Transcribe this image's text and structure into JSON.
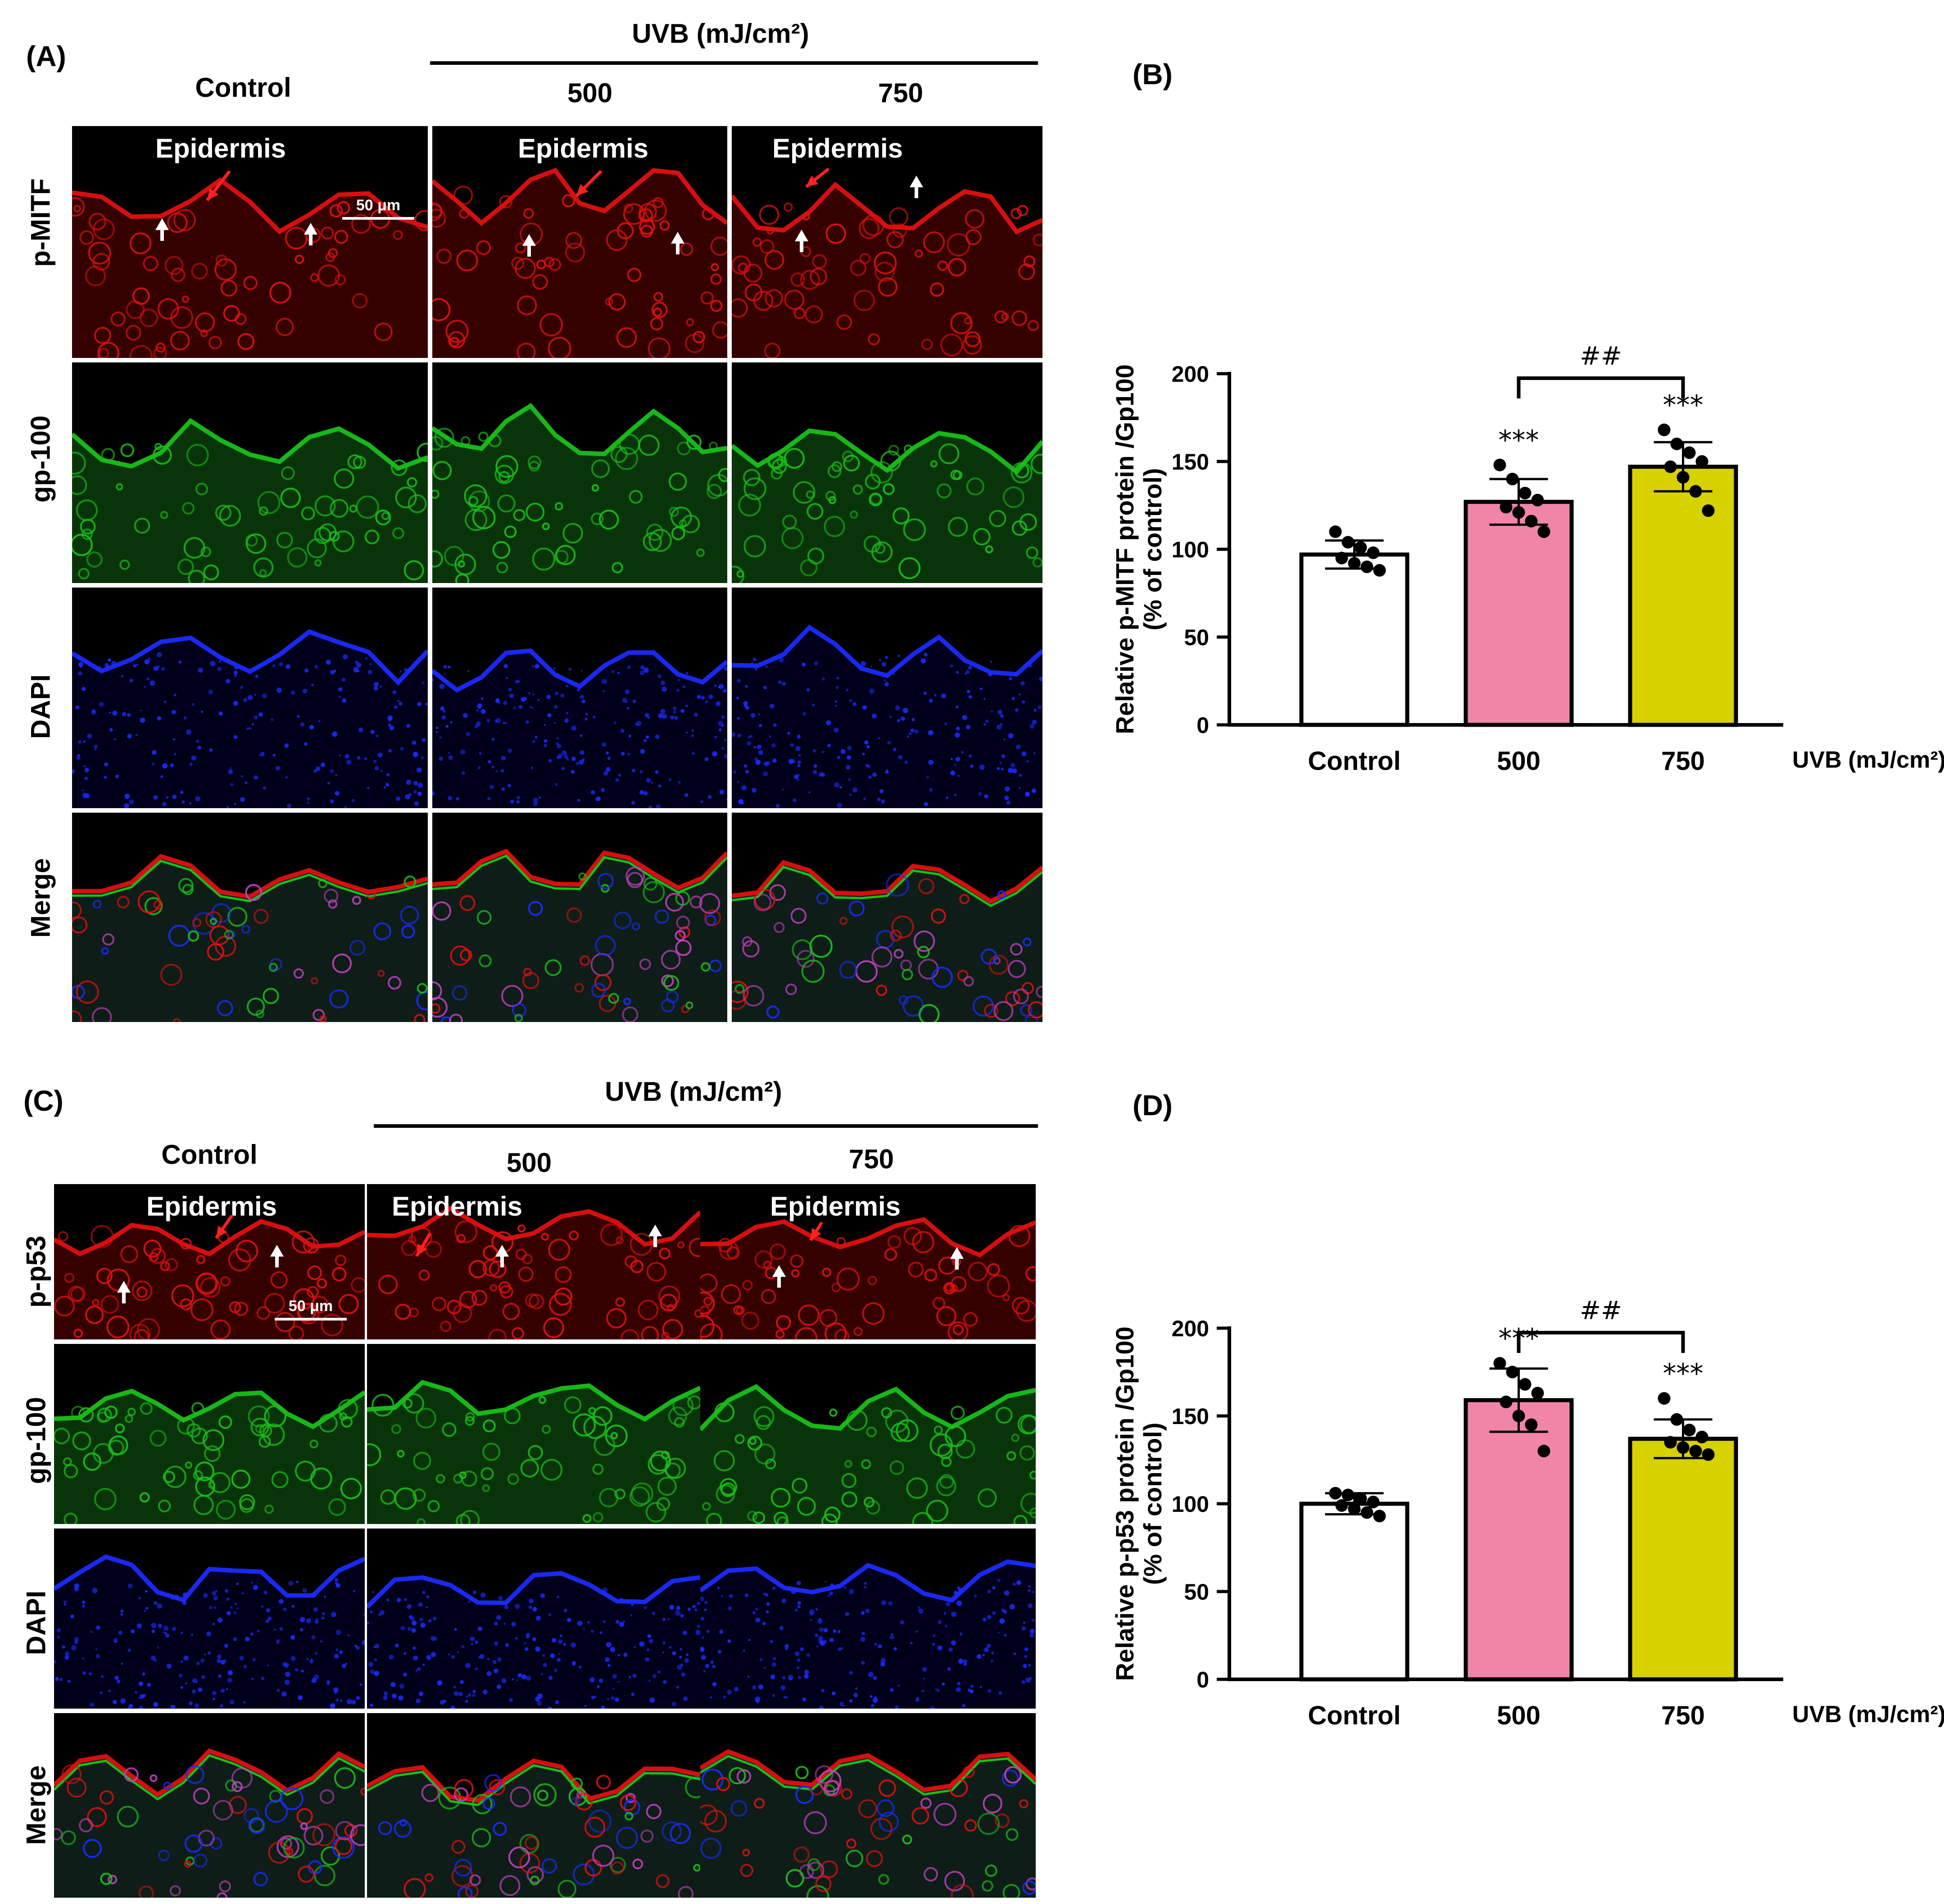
{
  "panels": {
    "A": {
      "label": "(A)",
      "uvb_header": "UVB (mJ/cm²)",
      "columns": [
        "Control",
        "500",
        "750"
      ],
      "rows": [
        "p-MITF",
        "gp-100",
        "DAPI",
        "Merge"
      ],
      "epidermis_label": "Epidermis",
      "scalebar_label": "50 μm"
    },
    "B": {
      "label": "(B)"
    },
    "C": {
      "label": "(C)",
      "uvb_header": "UVB (mJ/cm²)",
      "columns": [
        "Control",
        "500",
        "750"
      ],
      "rows": [
        "p-p53",
        "gp-100",
        "DAPI",
        "Merge"
      ],
      "epidermis_label": "Epidermis",
      "scalebar_label": "50 μm"
    },
    "D": {
      "label": "(D)"
    }
  },
  "chart_data": [
    {
      "type": "bar",
      "panel": "B",
      "categories": [
        "Control",
        "500",
        "750"
      ],
      "values": [
        97,
        127,
        147
      ],
      "errors": [
        8,
        13,
        14
      ],
      "points": [
        [
          110,
          104,
          101,
          98,
          95,
          92,
          90,
          88
        ],
        [
          148,
          140,
          132,
          128,
          124,
          121,
          116,
          110
        ],
        [
          168,
          160,
          155,
          150,
          147,
          141,
          133,
          122
        ]
      ],
      "bar_colors": [
        "#ffffff",
        "#f085a8",
        "#d8d100"
      ],
      "ylabel": "Relative p-MITF protein /Gp100\n(% of control)",
      "xlabel": "UVB (mJ/cm²)",
      "ylim": [
        0,
        200
      ],
      "yticks": [
        0,
        50,
        100,
        150,
        200
      ],
      "annotations": [
        {
          "category": "500",
          "text": "***"
        },
        {
          "category": "750",
          "text": "***"
        },
        {
          "between": [
            "500",
            "750"
          ],
          "text": "##"
        }
      ]
    },
    {
      "type": "bar",
      "panel": "D",
      "categories": [
        "Control",
        "500",
        "750"
      ],
      "values": [
        100,
        159,
        137
      ],
      "errors": [
        6,
        18,
        11
      ],
      "points": [
        [
          106,
          105,
          103,
          101,
          99,
          97,
          95,
          93
        ],
        [
          180,
          175,
          168,
          163,
          158,
          150,
          145,
          130
        ],
        [
          160,
          148,
          142,
          138,
          135,
          132,
          130,
          128
        ]
      ],
      "bar_colors": [
        "#ffffff",
        "#f085a8",
        "#d8d100"
      ],
      "ylabel": "Relative p-p53 protein /Gp100\n(% of control)",
      "xlabel": "UVB (mJ/cm²)",
      "ylim": [
        0,
        200
      ],
      "yticks": [
        0,
        50,
        100,
        150,
        200
      ],
      "annotations": [
        {
          "category": "500",
          "text": "***"
        },
        {
          "category": "750",
          "text": "***"
        },
        {
          "between": [
            "500",
            "750"
          ],
          "text": "##"
        }
      ]
    }
  ],
  "colors": {
    "red_stain": "#e01010",
    "green_stain": "#19c019",
    "blue_stain": "#1a2bff",
    "arrow_red": "#ff2020",
    "arrow_white": "#ffffff"
  }
}
